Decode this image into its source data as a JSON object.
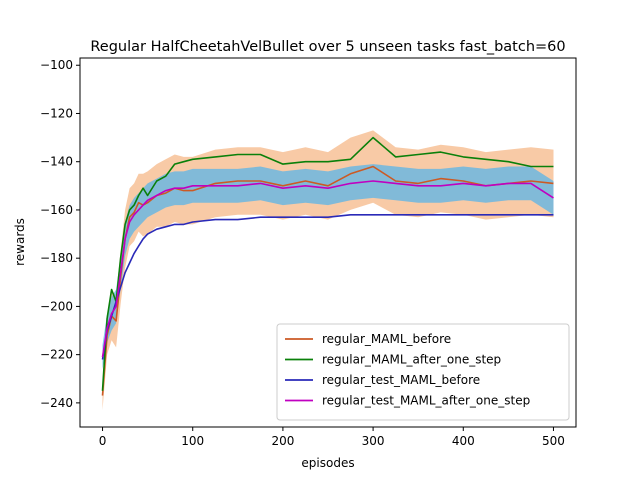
{
  "chart_data": {
    "type": "line",
    "title": "Regular HalfCheetahVelBullet over 5 unseen tasks fast_batch=60",
    "xlabel": "episodes",
    "ylabel": "rewards",
    "xlim": [
      -25,
      525
    ],
    "ylim": [
      -250,
      -97
    ],
    "xticks": [
      0,
      100,
      200,
      300,
      400,
      500
    ],
    "yticks": [
      -240,
      -220,
      -200,
      -180,
      -160,
      -140,
      -120,
      -100
    ],
    "xtick_labels": [
      "0",
      "100",
      "200",
      "300",
      "400",
      "500"
    ],
    "ytick_labels": [
      "−240",
      "−220",
      "−200",
      "−180",
      "−160",
      "−140",
      "−120",
      "−100"
    ],
    "legend_position": "lower right",
    "x": [
      0,
      5,
      10,
      15,
      20,
      25,
      30,
      35,
      40,
      45,
      50,
      60,
      70,
      80,
      90,
      100,
      125,
      150,
      175,
      200,
      225,
      250,
      275,
      300,
      325,
      350,
      375,
      400,
      425,
      450,
      475,
      500
    ],
    "series": [
      {
        "name": "regular_MAML_before",
        "color": "#cc5a24",
        "band_color": "#f5b888",
        "band_halfwidth": [
          6,
          8,
          10,
          11,
          11,
          12,
          12,
          12,
          12,
          13,
          13,
          13,
          14,
          14,
          14,
          14,
          14,
          14,
          14,
          14,
          14,
          14,
          15,
          15,
          14,
          14,
          14,
          14,
          14,
          14,
          14,
          14
        ],
        "values": [
          -237,
          -212,
          -204,
          -206,
          -188,
          -172,
          -163,
          -161,
          -157,
          -158,
          -157,
          -154,
          -153,
          -151,
          -152,
          -152,
          -149,
          -148,
          -148,
          -150,
          -148,
          -150,
          -145,
          -142,
          -148,
          -149,
          -147,
          -148,
          -150,
          -149,
          -148,
          -149
        ]
      },
      {
        "name": "regular_MAML_after_one_step",
        "color": "#0a800a",
        "values": [
          -235,
          -205,
          -193,
          -198,
          -180,
          -166,
          -160,
          -158,
          -154,
          -151,
          -154,
          -148,
          -146,
          -141,
          -140,
          -139,
          -138,
          -137,
          -137,
          -141,
          -140,
          -140,
          -139,
          -130,
          -138,
          -137,
          -136,
          -138,
          -139,
          -140,
          -142,
          -142
        ]
      },
      {
        "name": "regular_test_MAML_before",
        "color": "#2a2ab8",
        "values": [
          -222,
          -210,
          -204,
          -198,
          -192,
          -186,
          -182,
          -178,
          -175,
          -172,
          -170,
          -168,
          -167,
          -166,
          -166,
          -165,
          -164,
          -164,
          -163,
          -163,
          -163,
          -163,
          -162,
          -162,
          -162,
          -162,
          -162,
          -162,
          -162,
          -162,
          -162,
          -162
        ]
      },
      {
        "name": "regular_test_MAML_after_one_step",
        "color": "#c000c0",
        "band_color": "#5ab4e8",
        "band_halfwidth": [
          5,
          6,
          7,
          7,
          7,
          7,
          7,
          7,
          7,
          7,
          7,
          7,
          7,
          7,
          7,
          7,
          7,
          7,
          7,
          7,
          7,
          7,
          7,
          7,
          7,
          7,
          7,
          7,
          7,
          7,
          7,
          7
        ],
        "values": [
          -221,
          -209,
          -203,
          -200,
          -186,
          -172,
          -165,
          -162,
          -160,
          -158,
          -156,
          -154,
          -152,
          -151,
          -151,
          -150,
          -150,
          -150,
          -149,
          -151,
          -150,
          -151,
          -149,
          -148,
          -149,
          -150,
          -150,
          -149,
          -150,
          -149,
          -149,
          -155
        ]
      }
    ]
  }
}
